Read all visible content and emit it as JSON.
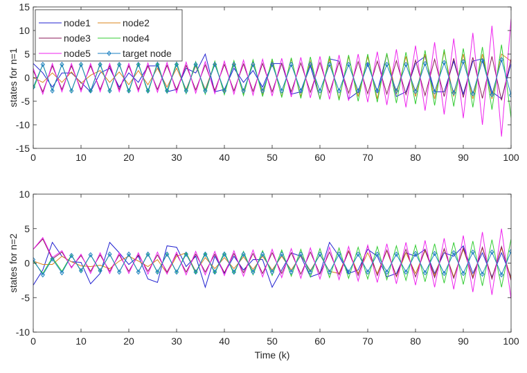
{
  "chart_data": [
    {
      "type": "line",
      "ylabel": "states for n=1",
      "xlabel": "",
      "xlim": [
        0,
        100
      ],
      "ylim": [
        -15,
        15
      ],
      "xticks": [
        "0",
        "10",
        "20",
        "30",
        "40",
        "50",
        "60",
        "70",
        "80",
        "90",
        "100"
      ],
      "yticks": [
        "-15",
        "-10",
        "-5",
        "0",
        "5",
        "10",
        "15"
      ],
      "x_step": 2,
      "legend": {
        "placement": "top-left",
        "columns": 2
      },
      "series": [
        {
          "name": "node1",
          "color": "#2020d0",
          "values": [
            3.0,
            1.0,
            -2.0,
            1.0,
            1.0,
            -1.0,
            -3.0,
            1.0,
            2.0,
            -2.0,
            1.0,
            -1.0,
            2.5,
            2.5,
            -3.0,
            -2.5,
            2.0,
            1.0,
            5.0,
            -3.0,
            -2.5,
            2.0,
            -1.0,
            1.5,
            -2.0,
            3.0,
            3.0,
            -3.5,
            -3.0,
            2.5,
            -4.5,
            4.0,
            3.5,
            -4.5,
            -3.0,
            3.0,
            -3.0,
            5.0,
            -4.0,
            -3.0,
            3.0,
            4.5,
            -3.0,
            -3.0,
            3.5,
            -3.5,
            3.5,
            4.0,
            -3.0,
            -4.5,
            3.0
          ]
        },
        {
          "name": "node2",
          "color": "#d9841a",
          "values": [
            0,
            -1.0,
            1.0,
            -1.0,
            1.2,
            -1.2,
            0.5,
            1.5,
            -1.0,
            1.2,
            -1.5,
            1.5,
            -1.5,
            2.0,
            -2.0,
            2.0,
            -2.5,
            2.5,
            -2.5,
            3.0,
            -3.0,
            3.0,
            -3.5,
            3.5,
            -3.5,
            3.5,
            -4.0,
            4.0,
            -4.0,
            3.5,
            -4.5,
            4.0,
            -4.5,
            4.5,
            -4.0,
            4.5,
            -4.5,
            5.0,
            -3.5,
            4.5,
            -4.0,
            5.0,
            -4.5,
            5.5,
            -4.0,
            5.0,
            -4.5,
            5.0,
            -4.5,
            5.0,
            3.5
          ]
        },
        {
          "name": "node3",
          "color": "#8b1a5a",
          "values": [
            1.5,
            -3.0,
            2.5,
            -2.5,
            2.5,
            -2.5,
            2.5,
            -2.5,
            2.5,
            -2.5,
            2.5,
            -2.5,
            2.5,
            -2.5,
            2.6,
            -2.6,
            2.6,
            -2.6,
            2.7,
            -2.7,
            2.8,
            -2.8,
            2.9,
            -2.9,
            3.0,
            -3.0,
            3.0,
            -3.0,
            3.1,
            -3.1,
            3.2,
            -3.2,
            3.3,
            -3.3,
            3.4,
            -3.4,
            3.5,
            -3.5,
            3.6,
            -3.6,
            3.7,
            -3.8,
            3.9,
            -4.0,
            4.1,
            -4.2,
            4.3,
            -4.4,
            4.5,
            -4.8,
            4.0
          ]
        },
        {
          "name": "node4",
          "color": "#33cc33",
          "values": [
            -2.5,
            2.8,
            -2.8,
            2.8,
            -2.9,
            2.9,
            -3.0,
            3.0,
            -3.0,
            3.0,
            -3.1,
            3.1,
            -3.2,
            3.2,
            -3.3,
            3.3,
            -3.4,
            3.4,
            -3.5,
            3.5,
            -3.6,
            3.6,
            -3.8,
            3.8,
            -4.0,
            4.0,
            -4.2,
            4.2,
            -4.4,
            4.4,
            -4.6,
            4.6,
            -4.8,
            4.8,
            -5.0,
            5.0,
            -5.2,
            5.2,
            -5.4,
            5.4,
            -5.6,
            5.8,
            -5.9,
            6.0,
            -6.1,
            6.2,
            -6.3,
            6.5,
            -6.8,
            7.0,
            -8.5
          ]
        },
        {
          "name": "node5",
          "color": "#ee22ee",
          "values": [
            2.0,
            -3.5,
            3.0,
            -3.0,
            3.0,
            -3.0,
            3.0,
            -3.0,
            3.0,
            -3.0,
            3.0,
            -3.0,
            3.1,
            -3.1,
            3.2,
            -3.2,
            3.3,
            -3.3,
            3.4,
            -3.4,
            3.5,
            -3.5,
            3.7,
            -3.7,
            3.9,
            -3.9,
            4.1,
            -4.1,
            4.3,
            -4.3,
            4.5,
            -4.6,
            4.8,
            -4.9,
            5.0,
            -5.2,
            5.5,
            -5.8,
            6.0,
            -6.3,
            6.8,
            -7.0,
            7.5,
            -7.8,
            8.3,
            -8.6,
            9.5,
            -10,
            11.0,
            -12.5,
            12.5
          ]
        },
        {
          "name": "target node",
          "color": "#1a7fc0",
          "marker": "diamond",
          "values": [
            -2.0,
            2.8,
            -2.8,
            2.8,
            -2.8,
            2.8,
            -2.8,
            2.8,
            -2.8,
            2.8,
            -2.8,
            2.8,
            -2.8,
            2.8,
            -2.8,
            2.8,
            -2.8,
            2.8,
            -2.8,
            2.8,
            -2.8,
            2.8,
            -2.8,
            2.8,
            -2.8,
            2.8,
            -2.8,
            2.8,
            -2.8,
            2.8,
            -2.8,
            2.8,
            -2.8,
            2.8,
            -2.8,
            2.8,
            -2.8,
            2.8,
            -2.8,
            2.8,
            -2.9,
            3.0,
            -3.0,
            3.2,
            -3.2,
            3.4,
            -3.4,
            3.6,
            -3.6,
            3.8,
            -3.7
          ]
        }
      ]
    },
    {
      "type": "line",
      "ylabel": "states for n=2",
      "xlabel": "Time (k)",
      "xlim": [
        0,
        100
      ],
      "ylim": [
        -10,
        10
      ],
      "xticks": [
        "0",
        "10",
        "20",
        "30",
        "40",
        "50",
        "60",
        "70",
        "80",
        "90",
        "100"
      ],
      "yticks": [
        "-10",
        "-5",
        "0",
        "5",
        "10"
      ],
      "x_step": 2,
      "series": [
        {
          "name": "node1",
          "color": "#2020d0",
          "values": [
            -3.2,
            -1.0,
            3.0,
            1.0,
            0.2,
            0.1,
            -3.0,
            -1.5,
            3.0,
            1.5,
            -0.2,
            1.0,
            -2.3,
            -2.8,
            2.5,
            2.3,
            -0.5,
            1.0,
            -3.5,
            1.0,
            -1.5,
            1.0,
            -1.0,
            0.5,
            0.5,
            -3.5,
            -1.0,
            1.5,
            1.0,
            -2.0,
            -1.5,
            3.0,
            1.0,
            -1.5,
            -1.0,
            2.0,
            1.0,
            -2.0,
            -1.5,
            1.5,
            1.0,
            2.0,
            -1.5,
            1.5,
            1.0,
            2.5,
            -1.5,
            1.5,
            -2.0,
            1.5,
            -2.0
          ]
        },
        {
          "name": "node2",
          "color": "#d9841a",
          "values": [
            0.3,
            -0.2,
            -0.2,
            1.0,
            0.2,
            -0.4,
            -0.5,
            -0.3,
            -0.8,
            0.3,
            1.0,
            0.3,
            -0.5,
            0.5,
            -1.5,
            1.0,
            1.5,
            -1.2,
            0.8,
            -0.8,
            0.8,
            -0.8,
            0.9,
            -0.9,
            1.0,
            -1.0,
            1.0,
            -1.0,
            1.1,
            -1.1,
            1.2,
            -1.2,
            -1.5,
            1.8,
            -1.5,
            1.5,
            -1.5,
            1.8,
            -2.0,
            1.5,
            -1.5,
            1.8,
            -1.8,
            2.0,
            -2.0,
            2.0,
            -2.0,
            2.2,
            -2.2,
            2.2,
            -2.2
          ]
        },
        {
          "name": "node3",
          "color": "#8b1a5a",
          "values": [
            2.0,
            3.5,
            0.6,
            1.6,
            -0.6,
            1.1,
            -1.2,
            1.2,
            -1.2,
            1.2,
            -1.2,
            1.2,
            -1.2,
            1.2,
            -1.3,
            1.3,
            -1.3,
            1.3,
            -1.3,
            1.3,
            -1.4,
            1.4,
            -1.4,
            1.4,
            -1.5,
            1.5,
            -1.5,
            1.5,
            -1.6,
            1.6,
            -1.6,
            1.6,
            -1.7,
            1.7,
            -1.8,
            2.5,
            -1.8,
            1.9,
            -1.9,
            2.0,
            -2.0,
            2.0,
            -2.1,
            2.1,
            -2.2,
            2.2,
            -2.2,
            2.3,
            -2.3,
            2.4,
            -2.5
          ]
        },
        {
          "name": "node4",
          "color": "#33cc33",
          "values": [
            0.3,
            -1.5,
            0.8,
            -1.2,
            1.2,
            -1.2,
            1.2,
            -1.2,
            1.3,
            -1.3,
            1.3,
            -1.3,
            1.4,
            -1.4,
            1.4,
            -1.4,
            1.5,
            -1.5,
            1.5,
            -1.5,
            1.6,
            -1.6,
            1.7,
            -1.7,
            1.8,
            -1.8,
            1.9,
            -1.9,
            2.0,
            -2.0,
            2.1,
            -2.1,
            2.2,
            -2.2,
            2.3,
            -2.3,
            2.4,
            -2.4,
            2.5,
            -2.5,
            2.6,
            -2.7,
            2.8,
            -2.9,
            3.0,
            -3.1,
            3.2,
            -3.3,
            3.4,
            -3.5,
            3.5
          ]
        },
        {
          "name": "node5",
          "color": "#ee22ee",
          "values": [
            2.0,
            3.7,
            0.8,
            1.8,
            -0.7,
            1.3,
            -1.5,
            1.5,
            -1.5,
            1.5,
            -1.5,
            1.5,
            -1.6,
            1.6,
            -1.6,
            1.6,
            -1.7,
            1.7,
            -1.7,
            1.7,
            -1.8,
            1.8,
            -1.9,
            1.9,
            -2.0,
            2.0,
            -2.1,
            2.1,
            -2.2,
            2.2,
            -2.3,
            2.3,
            -2.4,
            2.4,
            -2.6,
            2.6,
            -2.8,
            2.8,
            -3.0,
            3.0,
            -3.2,
            3.3,
            -3.5,
            3.6,
            -3.8,
            4.0,
            -4.2,
            4.5,
            -4.6,
            5.0,
            -5.2
          ]
        },
        {
          "name": "target node",
          "color": "#1a7fc0",
          "marker": "diamond",
          "values": [
            0.5,
            -1.7,
            0.6,
            -1.4,
            1.1,
            -1.1,
            1.2,
            -1.1,
            1.3,
            -1.3,
            1.3,
            -1.3,
            1.3,
            -1.3,
            1.3,
            -1.3,
            1.3,
            -1.3,
            1.3,
            -1.3,
            1.3,
            -1.3,
            1.3,
            -1.3,
            1.3,
            -1.3,
            1.3,
            -1.3,
            1.3,
            -1.3,
            1.3,
            -1.3,
            1.3,
            -1.3,
            1.3,
            -1.3,
            1.3,
            -1.3,
            1.3,
            -1.3,
            1.4,
            -1.4,
            1.4,
            -1.5,
            1.5,
            -1.5,
            1.6,
            -1.6,
            1.6,
            -1.7,
            1.7
          ]
        }
      ]
    }
  ]
}
